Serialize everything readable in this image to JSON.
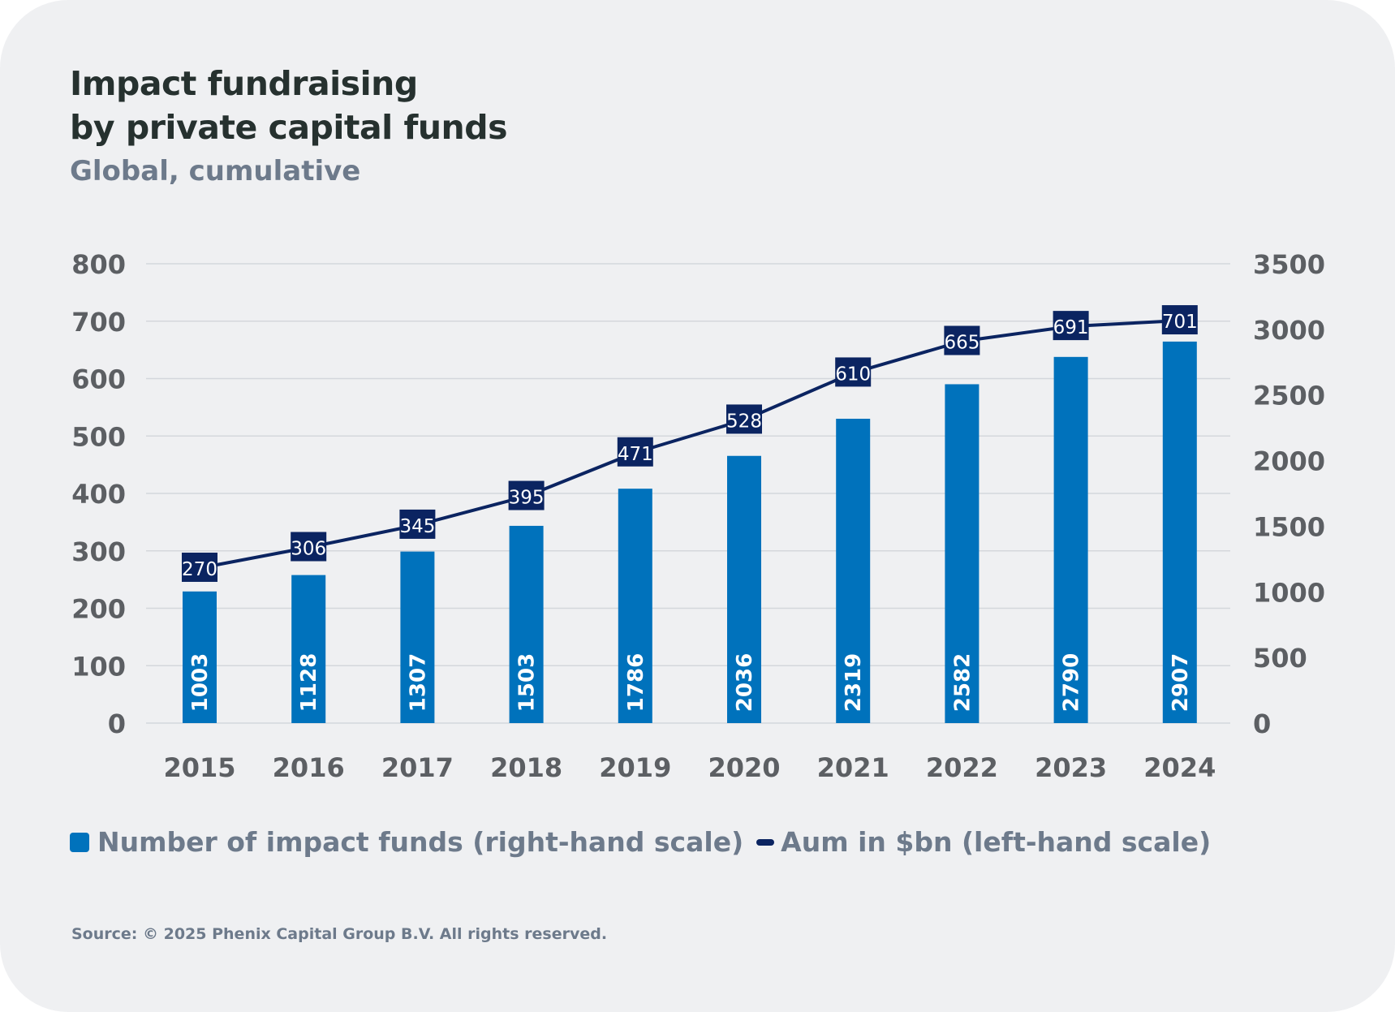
{
  "title_line1": "Impact fundraising",
  "title_line2": "by private capital funds",
  "subtitle": "Global, cumulative",
  "legend": {
    "bars_label": "Number of impact funds  (right-hand scale)",
    "line_label": "Aum in $bn (left-hand scale)"
  },
  "source": "Source: © 2025 Phenix Capital Group B.V. All rights reserved.",
  "colors": {
    "bar": "#0072bc",
    "line": "#0b2461",
    "grid": "#d4d7dc",
    "axis_text": "#5c5f63"
  },
  "chart_data": {
    "type": "bar+line",
    "categories": [
      "2015",
      "2016",
      "2017",
      "2018",
      "2019",
      "2020",
      "2021",
      "2022",
      "2023",
      "2024"
    ],
    "series": [
      {
        "name": "Number of impact funds (right-hand scale)",
        "type": "bar",
        "axis": "right",
        "values": [
          1003,
          1128,
          1307,
          1503,
          1786,
          2036,
          2319,
          2582,
          2790,
          2907
        ]
      },
      {
        "name": "Aum in $bn (left-hand scale)",
        "type": "line",
        "axis": "left",
        "values": [
          270,
          306,
          345,
          395,
          471,
          528,
          610,
          665,
          691,
          701
        ]
      }
    ],
    "left_axis": {
      "min": 0,
      "max": 800,
      "ticks": [
        "0",
        "100",
        "200",
        "300",
        "400",
        "500",
        "600",
        "700",
        "800"
      ]
    },
    "right_axis": {
      "min": 0,
      "max": 3500,
      "ticks": [
        "0",
        "500",
        "1000",
        "1500",
        "2000",
        "2500",
        "3000",
        "3500"
      ]
    },
    "grid": true,
    "legend_position": "bottom"
  }
}
